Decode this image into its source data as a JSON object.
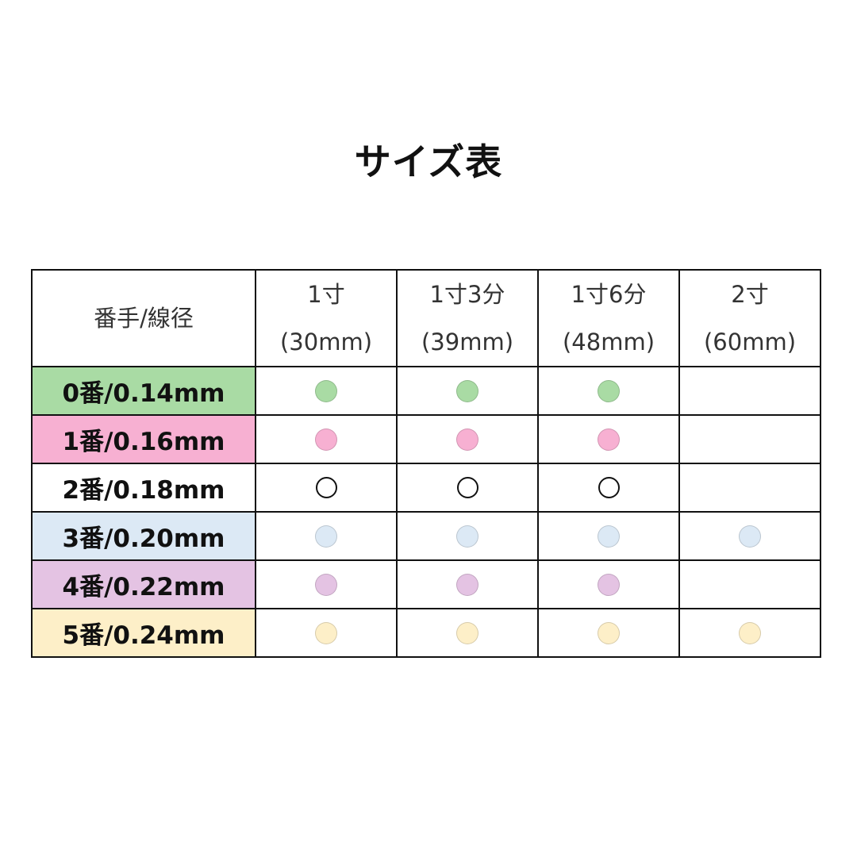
{
  "title": "サイズ表",
  "header": {
    "corner": "番手/線径",
    "columns": [
      {
        "size": "1寸",
        "mm": "(30mm)"
      },
      {
        "size": "1寸3分",
        "mm": "(39mm)"
      },
      {
        "size": "1寸6分",
        "mm": "(48mm)"
      },
      {
        "size": "2寸",
        "mm": "(60mm)"
      }
    ]
  },
  "rows": [
    {
      "label": "0番/0.14mm",
      "color": "#a9dba4",
      "mark_style": "filled",
      "available": [
        true,
        true,
        true,
        false
      ]
    },
    {
      "label": "1番/0.16mm",
      "color": "#f7b0d2",
      "mark_style": "filled",
      "available": [
        true,
        true,
        true,
        false
      ]
    },
    {
      "label": "2番/0.18mm",
      "color": "#ffffff",
      "mark_style": "outline",
      "available": [
        true,
        true,
        true,
        false
      ]
    },
    {
      "label": "3番/0.20mm",
      "color": "#dce9f5",
      "mark_style": "filled",
      "available": [
        true,
        true,
        true,
        true
      ]
    },
    {
      "label": "4番/0.22mm",
      "color": "#e4c3e3",
      "mark_style": "filled",
      "available": [
        true,
        true,
        true,
        false
      ]
    },
    {
      "label": "5番/0.24mm",
      "color": "#fdefc8",
      "mark_style": "filled",
      "available": [
        true,
        true,
        true,
        true
      ]
    }
  ]
}
